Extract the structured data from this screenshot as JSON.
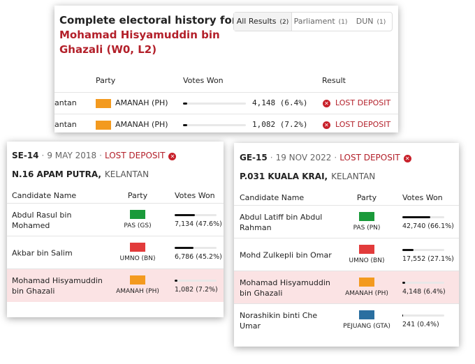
{
  "history": {
    "title": "Complete electoral history for",
    "name": "Mohamad Hisyamuddin bin Ghazali (W0, L2)",
    "tabs": [
      {
        "label": "All Results",
        "count": "(2)"
      },
      {
        "label": "Parliament",
        "count": "(1)"
      },
      {
        "label": "DUN",
        "count": "(1)"
      }
    ],
    "columns": [
      "Party",
      "Votes Won",
      "Result"
    ],
    "rows": [
      {
        "seat": "antan",
        "party": "AMANAH (PH)",
        "flag": "#f39a1f",
        "votes": "4,148 (6.4%)",
        "result": "LOST DEPOSIT"
      },
      {
        "seat": "antan",
        "party": "AMANAH (PH)",
        "flag": "#f39a1f",
        "votes": "1,082 (7.2%)",
        "result": "LOST DEPOSIT"
      }
    ]
  },
  "contests": [
    {
      "election": "SE-14",
      "date": "9 MAY 2018",
      "status": "LOST DEPOSIT",
      "seat": "N.16 APAM PUTRA,",
      "state": "KELANTAN",
      "columns": [
        "Candidate Name",
        "Party",
        "Votes Won"
      ],
      "rows": [
        {
          "candidate": "Abdul Rasul bin Mohamed",
          "party": "PAS (GS)",
          "flag": "#1a9a3a",
          "votes": "7,134 (47.6%)"
        },
        {
          "candidate": "Akbar bin Salim",
          "party": "UMNO (BN)",
          "flag": "#e23b3b",
          "votes": "6,786 (45.2%)"
        },
        {
          "candidate": "Mohamad Hisyamuddin bin Ghazali",
          "party": "AMANAH (PH)",
          "flag": "#f39a1f",
          "votes": "1,082 (7.2%)",
          "highlight": true
        }
      ]
    },
    {
      "election": "GE-15",
      "date": "19 NOV 2022",
      "status": "LOST DEPOSIT",
      "seat": "P.031 KUALA KRAI,",
      "state": "KELANTAN",
      "columns": [
        "Candidate Name",
        "Party",
        "Votes Won"
      ],
      "rows": [
        {
          "candidate": "Abdul Latiff bin Abdul Rahman",
          "party": "PAS (PN)",
          "flag": "#1a9a3a",
          "votes": "42,740 (66.1%)"
        },
        {
          "candidate": "Mohd Zulkepli bin Omar",
          "party": "UMNO (BN)",
          "flag": "#e23b3b",
          "votes": "17,552 (27.1%)"
        },
        {
          "candidate": "Mohamad Hisyamuddin bin Ghazali",
          "party": "AMANAH (PH)",
          "flag": "#f39a1f",
          "votes": "4,148 (6.4%)",
          "highlight": true
        },
        {
          "candidate": "Norashikin binti Che Umar",
          "party": "PEJUANG (GTA)",
          "flag": "#2a6fa0",
          "votes": "241 (0.4%)"
        }
      ]
    }
  ]
}
